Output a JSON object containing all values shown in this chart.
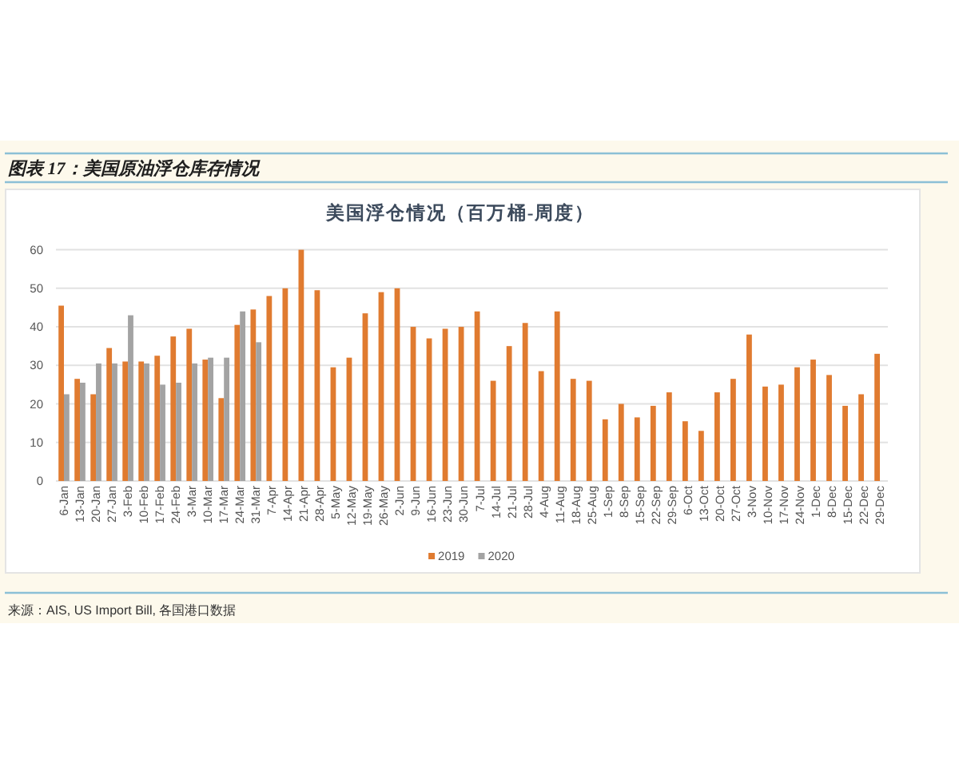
{
  "chart_data": {
    "type": "bar",
    "title": "图表 17：美国原油浮仓库存情况",
    "subtitle": "美国浮仓情况（百万桶-周度）",
    "annotations": [
      "来源：AIS, US Import Bill, 各国港口数据"
    ],
    "categories": [
      "6-Jan",
      "13-Jan",
      "20-Jan",
      "27-Jan",
      "3-Feb",
      "10-Feb",
      "17-Feb",
      "24-Feb",
      "3-Mar",
      "10-Mar",
      "17-Mar",
      "24-Mar",
      "31-Mar",
      "7-Apr",
      "14-Apr",
      "21-Apr",
      "28-Apr",
      "5-May",
      "12-May",
      "19-May",
      "26-May",
      "2-Jun",
      "9-Jun",
      "16-Jun",
      "23-Jun",
      "30-Jun",
      "7-Jul",
      "14-Jul",
      "21-Jul",
      "28-Jul",
      "4-Aug",
      "11-Aug",
      "18-Aug",
      "25-Aug",
      "1-Sep",
      "8-Sep",
      "15-Sep",
      "22-Sep",
      "29-Sep",
      "6-Oct",
      "13-Oct",
      "20-Oct",
      "27-Oct",
      "3-Nov",
      "10-Nov",
      "17-Nov",
      "24-Nov",
      "1-Dec",
      "8-Dec",
      "15-Dec",
      "22-Dec",
      "29-Dec"
    ],
    "series": [
      {
        "name": "2019",
        "color": "#e07b30",
        "values": [
          45.5,
          26.5,
          22.5,
          34.5,
          31,
          31,
          32.5,
          37.5,
          39.5,
          31.5,
          21.5,
          40.5,
          44.5,
          48,
          50,
          60,
          49.5,
          29.5,
          32,
          43.5,
          49,
          50,
          40,
          37,
          39.5,
          40,
          44,
          26,
          35,
          41,
          28.5,
          44,
          26.5,
          26,
          16,
          20,
          16.5,
          19.5,
          23,
          15.5,
          13,
          23,
          26.5,
          38,
          24.5,
          25,
          29.5,
          31.5,
          27.5,
          19.5,
          22.5,
          33
        ]
      },
      {
        "name": "2020",
        "color": "#a3a3a3",
        "values": [
          22.5,
          25.5,
          30.5,
          30.5,
          43,
          30.5,
          25,
          25.5,
          30.5,
          32,
          32,
          44,
          36,
          null,
          null,
          null,
          null,
          null,
          null,
          null,
          null,
          null,
          null,
          null,
          null,
          null,
          null,
          null,
          null,
          null,
          null,
          null,
          null,
          null,
          null,
          null,
          null,
          null,
          null,
          null,
          null,
          null,
          null,
          null,
          null,
          null,
          null,
          null,
          null,
          null,
          null,
          null
        ]
      }
    ],
    "ylim": [
      0,
      60
    ],
    "yticks": [
      0,
      10,
      20,
      30,
      40,
      50,
      60
    ],
    "grid": "y",
    "legend": "bottom"
  }
}
